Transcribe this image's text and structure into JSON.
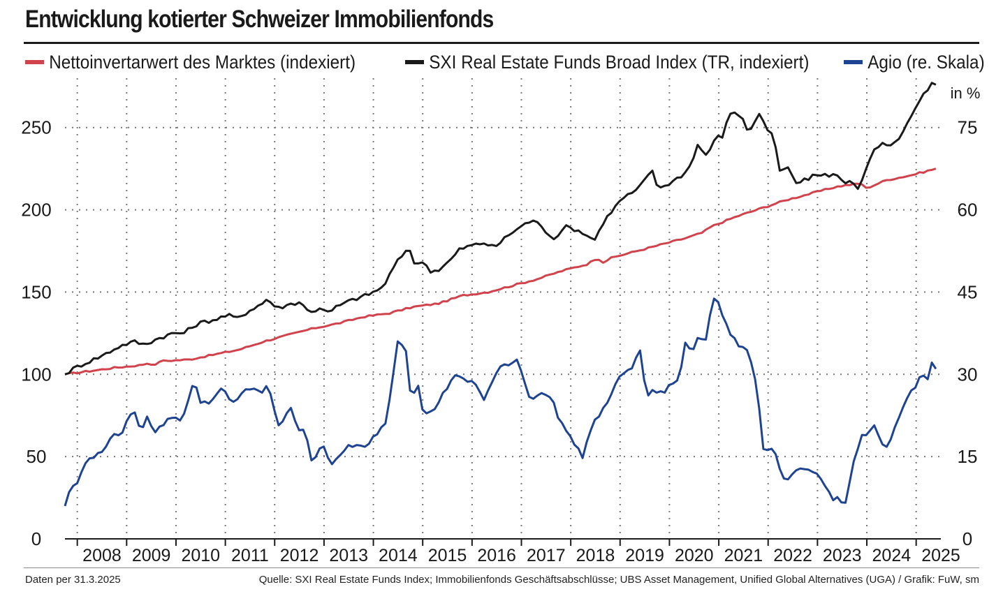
{
  "title": "Entwicklung kotierter Schweizer Immobilienfonds",
  "legend": [
    {
      "label": "Nettoinvertarwert des Marktes (indexiert)",
      "color": "#d1434c"
    },
    {
      "label": "SXI Real Estate Funds Broad Index (TR, indexiert)",
      "color": "#1a1a1a"
    },
    {
      "label": "Agio (re. Skala)",
      "color": "#1e4391"
    }
  ],
  "footer": {
    "left": "Daten per 31.3.2025",
    "right": "Quelle: SXI Real Estate Funds Index; Immobilienfonds Geschäftsabschlüsse; UBS Asset Management, Unified Global Alternatives (UGA) / Grafik: FuW, sm"
  },
  "chart_data": {
    "type": "line",
    "x_start": 2007.5,
    "x_end": 2025.25,
    "xlim": [
      2007.5,
      2025.25
    ],
    "ylim": [
      0,
      280
    ],
    "y2lim": [
      0,
      84
    ],
    "y2_unit": "in %",
    "yticks": [
      0,
      50,
      100,
      150,
      200,
      250
    ],
    "y2ticks": [
      0,
      15,
      30,
      45,
      60,
      75
    ],
    "xticks": [
      "2008",
      "2009",
      "2010",
      "2011",
      "2012",
      "2013",
      "2014",
      "2015",
      "2016",
      "2017",
      "2018",
      "2019",
      "2020",
      "2021",
      "2022",
      "2023",
      "2024",
      "2025"
    ],
    "grid": true,
    "series": [
      {
        "name": "Nettoinvertarwert des Marktes (indexiert)",
        "axis": "left",
        "color": "#d1434c",
        "knots": [
          [
            2007.5,
            100
          ],
          [
            2008.0,
            102
          ],
          [
            2008.5,
            104
          ],
          [
            2009.0,
            105.5
          ],
          [
            2009.2,
            107
          ],
          [
            2009.3,
            105
          ],
          [
            2009.4,
            108
          ],
          [
            2010.0,
            109
          ],
          [
            2010.5,
            112
          ],
          [
            2011.0,
            115
          ],
          [
            2011.5,
            120
          ],
          [
            2012.0,
            124
          ],
          [
            2012.5,
            128
          ],
          [
            2013.0,
            131
          ],
          [
            2013.5,
            135
          ],
          [
            2014.0,
            137
          ],
          [
            2014.5,
            141
          ],
          [
            2015.0,
            143
          ],
          [
            2015.5,
            148
          ],
          [
            2016.0,
            150
          ],
          [
            2016.5,
            154
          ],
          [
            2017.0,
            158
          ],
          [
            2017.5,
            163
          ],
          [
            2018.0,
            167
          ],
          [
            2018.2,
            171
          ],
          [
            2018.3,
            168
          ],
          [
            2018.5,
            171
          ],
          [
            2019.0,
            175
          ],
          [
            2019.5,
            179
          ],
          [
            2020.0,
            183
          ],
          [
            2020.3,
            186
          ],
          [
            2020.5,
            190
          ],
          [
            2021.0,
            196
          ],
          [
            2021.5,
            201
          ],
          [
            2022.0,
            206
          ],
          [
            2022.5,
            210
          ],
          [
            2023.0,
            214
          ],
          [
            2023.2,
            215
          ],
          [
            2023.5,
            216
          ],
          [
            2023.6,
            213
          ],
          [
            2024.0,
            218
          ],
          [
            2024.5,
            221
          ],
          [
            2025.0,
            225
          ]
        ],
        "noise": 0.5
      },
      {
        "name": "SXI Real Estate Funds Broad Index (TR, indexiert)",
        "axis": "left",
        "color": "#1a1a1a",
        "knots": [
          [
            2007.5,
            100
          ],
          [
            2007.7,
            104
          ],
          [
            2008.0,
            108
          ],
          [
            2008.3,
            112
          ],
          [
            2008.6,
            117
          ],
          [
            2008.9,
            120
          ],
          [
            2009.1,
            118
          ],
          [
            2009.4,
            122
          ],
          [
            2009.7,
            125
          ],
          [
            2009.9,
            125
          ],
          [
            2010.2,
            131
          ],
          [
            2010.5,
            133
          ],
          [
            2010.8,
            136
          ],
          [
            2011.0,
            134
          ],
          [
            2011.3,
            140
          ],
          [
            2011.5,
            143
          ],
          [
            2011.6,
            146
          ],
          [
            2011.8,
            140
          ],
          [
            2012.1,
            143
          ],
          [
            2012.3,
            144
          ],
          [
            2012.45,
            137
          ],
          [
            2012.7,
            141
          ],
          [
            2012.85,
            137
          ],
          [
            2013.0,
            141
          ],
          [
            2013.3,
            145
          ],
          [
            2013.6,
            148
          ],
          [
            2013.9,
            152
          ],
          [
            2014.0,
            156
          ],
          [
            2014.2,
            167
          ],
          [
            2014.4,
            175
          ],
          [
            2014.5,
            176
          ],
          [
            2014.6,
            165
          ],
          [
            2014.75,
            169
          ],
          [
            2014.9,
            163
          ],
          [
            2015.05,
            163
          ],
          [
            2015.3,
            169
          ],
          [
            2015.5,
            176
          ],
          [
            2015.7,
            178
          ],
          [
            2016.0,
            180
          ],
          [
            2016.2,
            177
          ],
          [
            2016.5,
            185
          ],
          [
            2016.8,
            191
          ],
          [
            2017.0,
            194
          ],
          [
            2017.2,
            188
          ],
          [
            2017.45,
            182
          ],
          [
            2017.6,
            190
          ],
          [
            2017.85,
            188
          ],
          [
            2018.0,
            186
          ],
          [
            2018.15,
            183
          ],
          [
            2018.25,
            182
          ],
          [
            2018.4,
            192
          ],
          [
            2018.6,
            200
          ],
          [
            2018.8,
            207
          ],
          [
            2019.1,
            212
          ],
          [
            2019.3,
            220
          ],
          [
            2019.4,
            225
          ],
          [
            2019.5,
            213
          ],
          [
            2019.75,
            216
          ],
          [
            2019.9,
            219
          ],
          [
            2020.05,
            222
          ],
          [
            2020.2,
            228
          ],
          [
            2020.3,
            240
          ],
          [
            2020.5,
            233
          ],
          [
            2020.7,
            244
          ],
          [
            2020.85,
            245
          ],
          [
            2020.95,
            258
          ],
          [
            2021.1,
            260
          ],
          [
            2021.25,
            254
          ],
          [
            2021.35,
            247
          ],
          [
            2021.5,
            255
          ],
          [
            2021.6,
            259
          ],
          [
            2021.7,
            250
          ],
          [
            2021.85,
            245
          ],
          [
            2022.0,
            222
          ],
          [
            2022.15,
            226
          ],
          [
            2022.3,
            216
          ],
          [
            2022.5,
            218
          ],
          [
            2022.7,
            221
          ],
          [
            2022.85,
            222
          ],
          [
            2023.0,
            220
          ],
          [
            2023.15,
            222
          ],
          [
            2023.3,
            215
          ],
          [
            2023.45,
            219
          ],
          [
            2023.55,
            212
          ],
          [
            2023.7,
            222
          ],
          [
            2023.9,
            236
          ],
          [
            2024.05,
            240
          ],
          [
            2024.25,
            238
          ],
          [
            2024.5,
            248
          ],
          [
            2024.75,
            262
          ],
          [
            2024.9,
            270
          ],
          [
            2025.0,
            272
          ],
          [
            2025.05,
            277
          ],
          [
            2025.15,
            276
          ]
        ],
        "noise": 1.2
      },
      {
        "name": "Agio (re. Skala)",
        "axis": "right",
        "color": "#1e4391",
        "knots": [
          [
            2007.5,
            6
          ],
          [
            2007.6,
            9
          ],
          [
            2007.75,
            10
          ],
          [
            2007.9,
            13
          ],
          [
            2008.0,
            15
          ],
          [
            2008.15,
            15
          ],
          [
            2008.3,
            16
          ],
          [
            2008.5,
            19
          ],
          [
            2008.65,
            18.5
          ],
          [
            2008.8,
            21
          ],
          [
            2008.95,
            24
          ],
          [
            2009.1,
            19.5
          ],
          [
            2009.25,
            22.5
          ],
          [
            2009.4,
            19.5
          ],
          [
            2009.6,
            21
          ],
          [
            2009.8,
            22.5
          ],
          [
            2009.95,
            21.5
          ],
          [
            2010.05,
            23.5
          ],
          [
            2010.25,
            29
          ],
          [
            2010.35,
            25
          ],
          [
            2010.6,
            25
          ],
          [
            2010.85,
            27.5
          ],
          [
            2011.05,
            24.5
          ],
          [
            2011.35,
            27.5
          ],
          [
            2011.55,
            27
          ],
          [
            2011.7,
            26.5
          ],
          [
            2011.8,
            28.5
          ],
          [
            2012.05,
            20
          ],
          [
            2012.2,
            23
          ],
          [
            2012.3,
            24
          ],
          [
            2012.45,
            20
          ],
          [
            2012.6,
            19.5
          ],
          [
            2012.75,
            14
          ],
          [
            2012.9,
            16.5
          ],
          [
            2013.0,
            17
          ],
          [
            2013.15,
            13.5
          ],
          [
            2013.3,
            14.5
          ],
          [
            2013.5,
            17
          ],
          [
            2013.7,
            17
          ],
          [
            2013.9,
            16.5
          ],
          [
            2014.05,
            18.5
          ],
          [
            2014.3,
            21
          ],
          [
            2014.45,
            28
          ],
          [
            2014.55,
            36.5
          ],
          [
            2014.75,
            34.5
          ],
          [
            2014.85,
            25.5
          ],
          [
            2015.0,
            28.5
          ],
          [
            2015.1,
            23
          ],
          [
            2015.3,
            23
          ],
          [
            2015.5,
            26
          ],
          [
            2015.65,
            28
          ],
          [
            2015.75,
            30
          ],
          [
            2015.95,
            29
          ],
          [
            2016.2,
            28.5
          ],
          [
            2016.4,
            25.5
          ],
          [
            2016.6,
            29
          ],
          [
            2016.75,
            31.5
          ],
          [
            2016.95,
            31.5
          ],
          [
            2017.1,
            33
          ],
          [
            2017.25,
            29
          ],
          [
            2017.4,
            25
          ],
          [
            2017.6,
            27
          ],
          [
            2017.85,
            25.5
          ],
          [
            2018.0,
            21.5
          ],
          [
            2018.15,
            20
          ],
          [
            2018.3,
            17.5
          ],
          [
            2018.5,
            15
          ],
          [
            2018.7,
            21
          ],
          [
            2018.9,
            23
          ],
          [
            2019.05,
            25.5
          ],
          [
            2019.25,
            29
          ],
          [
            2019.45,
            31
          ],
          [
            2019.6,
            31.5
          ],
          [
            2019.7,
            35.5
          ],
          [
            2019.85,
            26
          ],
          [
            2020.0,
            27
          ],
          [
            2020.2,
            26.5
          ],
          [
            2020.4,
            28.5
          ],
          [
            2020.55,
            29
          ],
          [
            2020.7,
            37
          ],
          [
            2020.8,
            33.5
          ],
          [
            2020.95,
            37
          ],
          [
            2021.1,
            36
          ],
          [
            2021.25,
            43.5
          ],
          [
            2021.35,
            44
          ],
          [
            2021.5,
            40
          ],
          [
            2021.65,
            37
          ],
          [
            2021.85,
            35
          ],
          [
            2022.0,
            34
          ],
          [
            2022.1,
            32
          ],
          [
            2022.2,
            27.5
          ],
          [
            2022.35,
            15.5
          ],
          [
            2022.55,
            17
          ],
          [
            2022.7,
            12
          ],
          [
            2022.85,
            10.5
          ],
          [
            2023.0,
            12
          ],
          [
            2023.15,
            13
          ],
          [
            2023.35,
            12
          ],
          [
            2023.5,
            11.5
          ],
          [
            2023.7,
            9
          ],
          [
            2023.85,
            6.5
          ],
          [
            2023.95,
            8.5
          ],
          [
            2024.05,
            5
          ],
          [
            2024.25,
            14
          ],
          [
            2024.4,
            18.5
          ],
          [
            2024.55,
            19
          ],
          [
            2024.7,
            21
          ],
          [
            2024.85,
            17
          ],
          [
            2025.0,
            16.5
          ],
          [
            2025.1,
            20
          ],
          [
            2025.25,
            22.5
          ],
          [
            2025.4,
            26
          ],
          [
            2025.55,
            27.5
          ],
          [
            2025.7,
            30.5
          ],
          [
            2025.8,
            28.5
          ],
          [
            2025.9,
            32
          ],
          [
            2026.0,
            31
          ]
        ],
        "x_scale_note": "knots on an internal time axis; rendered compressed to 2007.5-2025.15",
        "noise": 0.35
      }
    ]
  }
}
